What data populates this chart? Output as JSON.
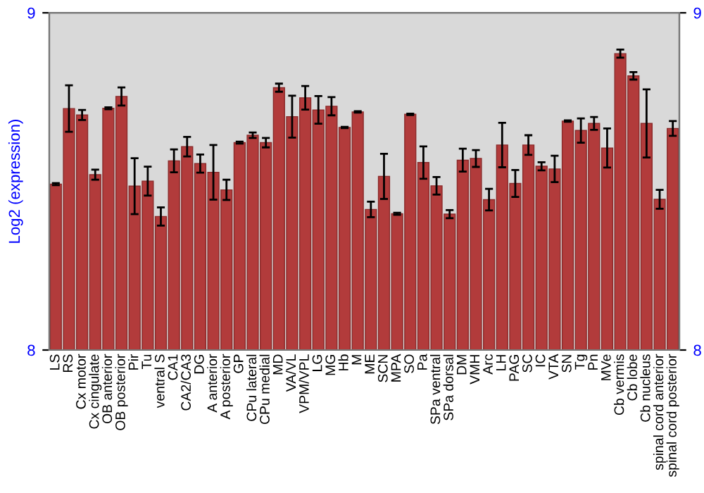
{
  "chart_data": {
    "type": "bar",
    "ylabel": "Log2 (expression)",
    "categories": [
      "LS",
      "RS",
      "Cx motor",
      "Cx cingulate",
      "OB anterior",
      "OB posterior",
      "Pir",
      "Tu",
      "ventral S",
      "CA1",
      "CA2/CA3",
      "DG",
      "A anterior",
      "A posterior",
      "GP",
      "CPu lateral",
      "CPu medial",
      "MD",
      "VA/VL",
      "VPM/VPL",
      "LG",
      "MG",
      "Hb",
      "M",
      "ME",
      "SCN",
      "MPA",
      "SO",
      "Pa",
      "SPa ventral",
      "SPa dorsal",
      "DM",
      "VMH",
      "Arc",
      "LH",
      "PAG",
      "SC",
      "IC",
      "VTA",
      "SN",
      "Tg",
      "Pn",
      "MVe",
      "Cb vermis",
      "Cb lobe",
      "Cb nucleus",
      "spinal cord anterior",
      "spinal cord posterior"
    ],
    "values": [
      8.492,
      8.716,
      8.697,
      8.52,
      8.717,
      8.752,
      8.486,
      8.501,
      8.396,
      8.561,
      8.603,
      8.553,
      8.527,
      8.475,
      8.615,
      8.637,
      8.615,
      8.778,
      8.692,
      8.748,
      8.712,
      8.723,
      8.66,
      8.706,
      8.417,
      8.515,
      8.404,
      8.699,
      8.556,
      8.487,
      8.403,
      8.563,
      8.568,
      8.446,
      8.608,
      8.494,
      8.608,
      8.545,
      8.537,
      8.679,
      8.651,
      8.672,
      8.599,
      8.879,
      8.813,
      8.672,
      8.447,
      8.657
    ],
    "errors": [
      0.003,
      0.069,
      0.015,
      0.015,
      0.003,
      0.027,
      0.083,
      0.043,
      0.027,
      0.034,
      0.029,
      0.027,
      0.081,
      0.03,
      0.003,
      0.008,
      0.014,
      0.012,
      0.062,
      0.035,
      0.041,
      0.027,
      0.002,
      0.002,
      0.023,
      0.067,
      0.003,
      0.002,
      0.048,
      0.026,
      0.012,
      0.034,
      0.025,
      0.032,
      0.066,
      0.04,
      0.029,
      0.012,
      0.039,
      0.002,
      0.036,
      0.019,
      0.058,
      0.012,
      0.011,
      0.101,
      0.028,
      0.022
    ],
    "color": "#b23b3b",
    "ylim": [
      8,
      9
    ],
    "yticks": [
      8,
      9
    ],
    "y2lim": [
      8,
      9
    ],
    "y2ticks": [
      8,
      9
    ],
    "grid": false
  }
}
